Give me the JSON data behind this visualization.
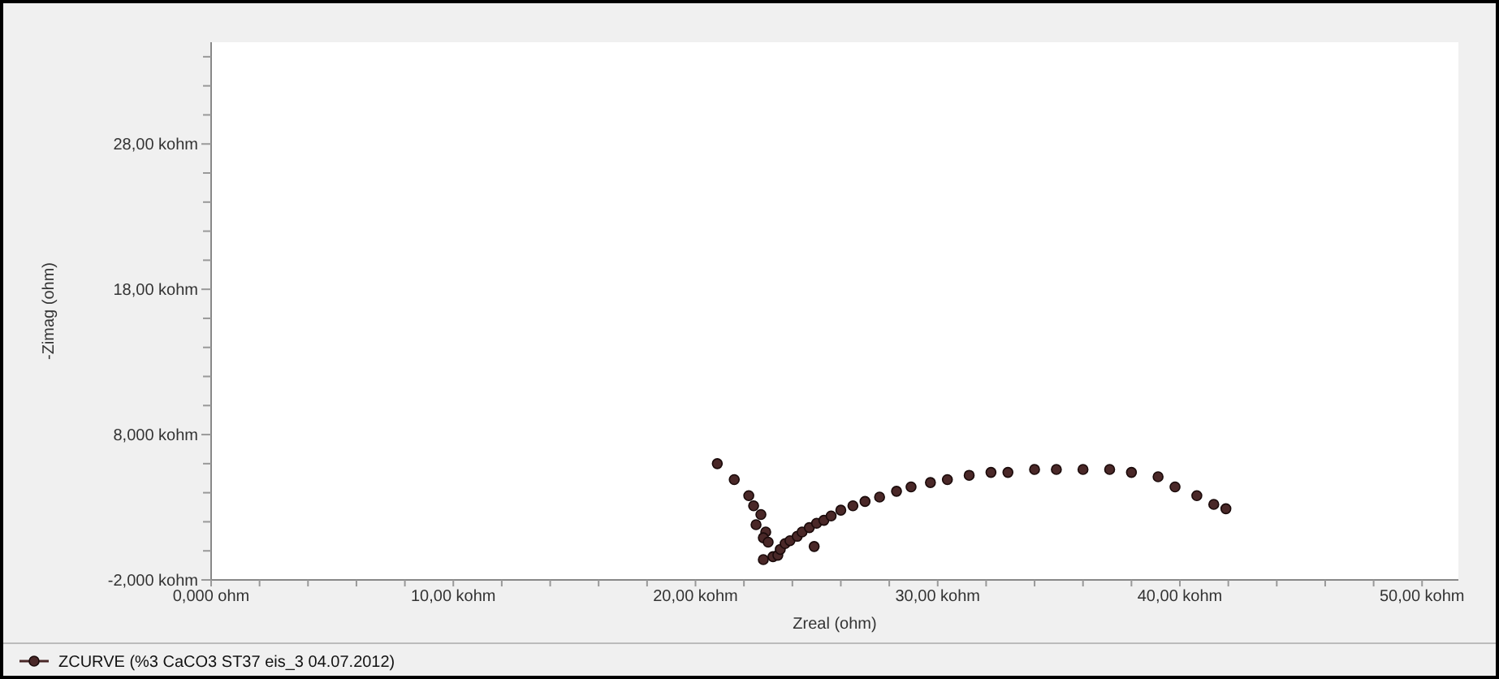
{
  "chart_data": {
    "type": "scatter",
    "xlabel": "Zreal (ohm)",
    "ylabel": "-Zimag (ohm)",
    "xlim": [
      0,
      51.5
    ],
    "ylim": [
      -2,
      35
    ],
    "xticks": [
      {
        "value": 0,
        "label": "0,000 ohm"
      },
      {
        "value": 2,
        "label": null
      },
      {
        "value": 4,
        "label": null
      },
      {
        "value": 6,
        "label": null
      },
      {
        "value": 8,
        "label": null
      },
      {
        "value": 10,
        "label": "10,00 kohm"
      },
      {
        "value": 12,
        "label": null
      },
      {
        "value": 14,
        "label": null
      },
      {
        "value": 16,
        "label": null
      },
      {
        "value": 18,
        "label": null
      },
      {
        "value": 20,
        "label": "20,00 kohm"
      },
      {
        "value": 22,
        "label": null
      },
      {
        "value": 24,
        "label": null
      },
      {
        "value": 26,
        "label": null
      },
      {
        "value": 28,
        "label": null
      },
      {
        "value": 30,
        "label": "30,00 kohm"
      },
      {
        "value": 32,
        "label": null
      },
      {
        "value": 34,
        "label": null
      },
      {
        "value": 36,
        "label": null
      },
      {
        "value": 38,
        "label": null
      },
      {
        "value": 40,
        "label": "40,00 kohm"
      },
      {
        "value": 42,
        "label": null
      },
      {
        "value": 44,
        "label": null
      },
      {
        "value": 46,
        "label": null
      },
      {
        "value": 48,
        "label": null
      },
      {
        "value": 50,
        "label": "50,00 kohm"
      }
    ],
    "yticks": [
      {
        "value": -2,
        "label": "-2,000 kohm"
      },
      {
        "value": 0,
        "label": null
      },
      {
        "value": 2,
        "label": null
      },
      {
        "value": 4,
        "label": null
      },
      {
        "value": 6,
        "label": null
      },
      {
        "value": 8,
        "label": "8,000 kohm"
      },
      {
        "value": 10,
        "label": null
      },
      {
        "value": 12,
        "label": null
      },
      {
        "value": 14,
        "label": null
      },
      {
        "value": 16,
        "label": null
      },
      {
        "value": 18,
        "label": "18,00 kohm"
      },
      {
        "value": 20,
        "label": null
      },
      {
        "value": 22,
        "label": null
      },
      {
        "value": 24,
        "label": null
      },
      {
        "value": 26,
        "label": null
      },
      {
        "value": 28,
        "label": "28,00 kohm"
      },
      {
        "value": 30,
        "label": null
      },
      {
        "value": 32,
        "label": null
      },
      {
        "value": 34,
        "label": null
      }
    ],
    "x": [
      20.9,
      21.6,
      22.2,
      22.4,
      22.7,
      22.5,
      22.9,
      22.8,
      23.0,
      22.8,
      23.2,
      23.4,
      23.5,
      23.7,
      23.9,
      24.2,
      24.4,
      24.7,
      25.0,
      24.9,
      25.3,
      25.6,
      26.0,
      26.5,
      27.0,
      27.6,
      28.3,
      28.9,
      29.7,
      30.4,
      31.3,
      32.2,
      32.9,
      34.0,
      34.9,
      36.0,
      37.1,
      38.0,
      39.1,
      39.8,
      40.7,
      41.4,
      41.9
    ],
    "series": [
      {
        "name": "ZCURVE (%3 CaCO3 ST37 eis_3 04.07.2012)",
        "color": "#4a2828",
        "values": [
          6.0,
          4.9,
          3.8,
          3.1,
          2.5,
          1.8,
          1.3,
          0.9,
          0.6,
          -0.6,
          -0.4,
          -0.3,
          0.1,
          0.5,
          0.7,
          1.0,
          1.3,
          1.6,
          1.9,
          0.3,
          2.1,
          2.4,
          2.8,
          3.1,
          3.4,
          3.7,
          4.1,
          4.4,
          4.7,
          4.9,
          5.2,
          5.4,
          5.4,
          5.6,
          5.6,
          5.6,
          5.6,
          5.4,
          5.1,
          4.4,
          3.8,
          3.2,
          2.9
        ]
      }
    ],
    "marker": "circle",
    "grid": false,
    "legend": "bottom"
  }
}
